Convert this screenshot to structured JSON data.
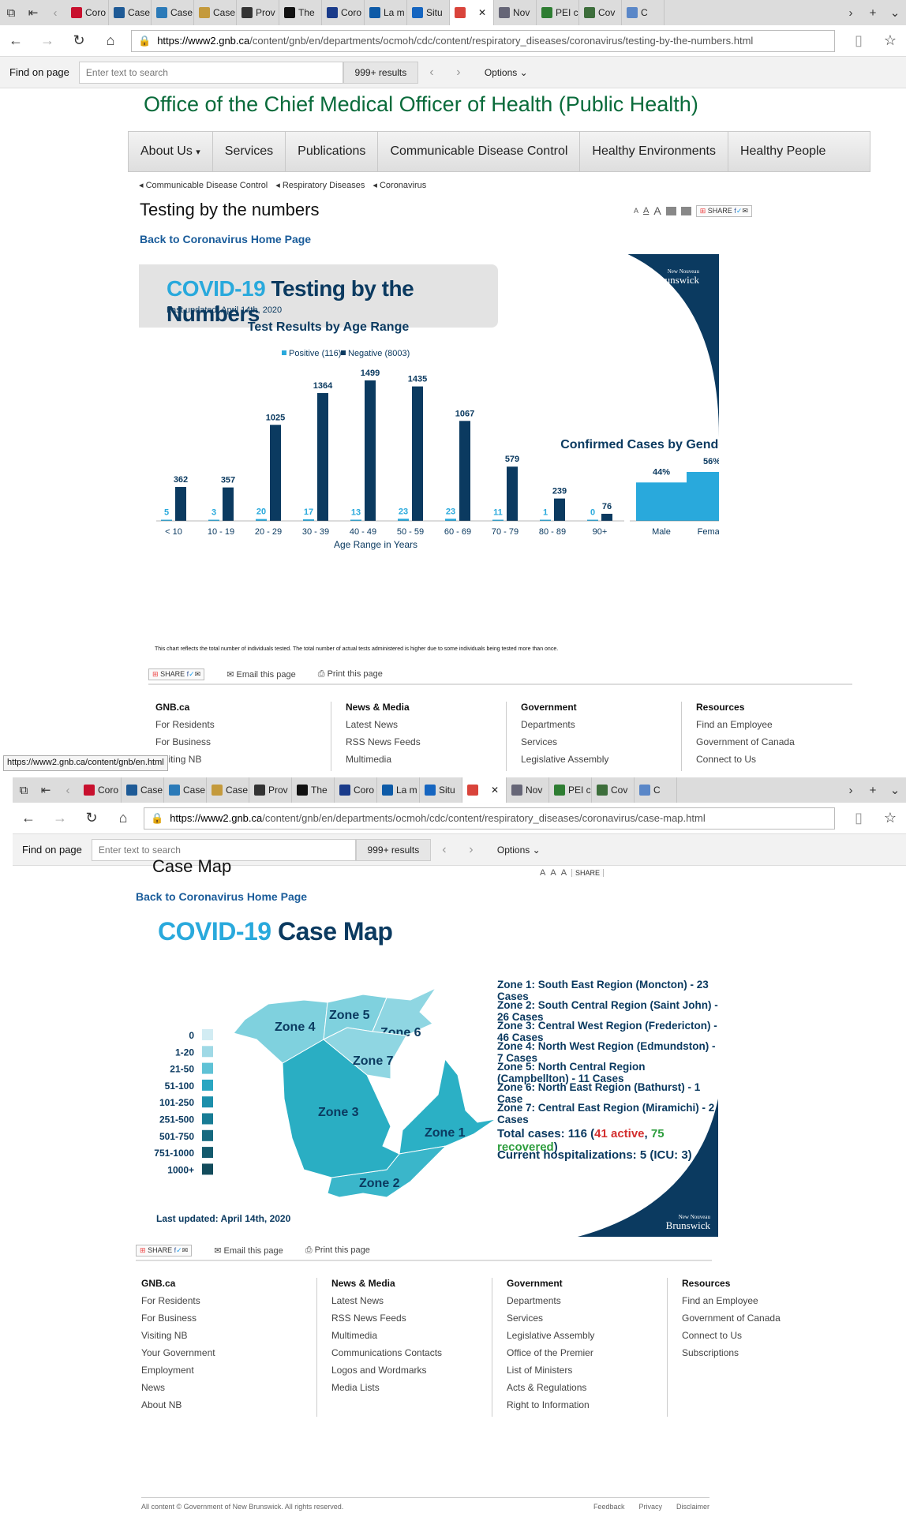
{
  "browser1": {
    "tabs": [
      "Coro",
      "Case",
      "Case",
      "Case",
      "Prov",
      "The",
      "Coro",
      "La m",
      "Situ",
      "",
      "Nov",
      "PEI c",
      "Cov",
      "C"
    ],
    "url_domain": "https://www2.gnb.ca",
    "url_path": "/content/gnb/en/departments/ocmoh/cdc/content/respiratory_diseases/coronavirus/testing-by-the-numbers.html",
    "find_label": "Find on page",
    "find_placeholder": "Enter text to search",
    "find_count": "999+ results",
    "find_options": "Options"
  },
  "page1": {
    "office_title": "Office of the Chief Medical Officer of Health (Public Health)",
    "menu": [
      "About Us",
      "Services",
      "Publications",
      "Communicable Disease Control",
      "Healthy Environments",
      "Healthy People"
    ],
    "menu_caret": "▾",
    "breadcrumbs": [
      "Communicable Disease Control",
      "Respiratory Diseases",
      "Coronavirus"
    ],
    "page_title": "Testing by the numbers",
    "share": "SHARE",
    "back_link": "Back to Coronavirus Home Page",
    "banner_covid": "COVID-19",
    "banner_rest": "Testing by the Numbers",
    "last_updated": "Last updated: April 14th, 2020",
    "logo_small": "New Nouveau",
    "logo_big": "Brunswick",
    "note": "This chart reflects the total number of individuals tested. The total number of actual tests administered is higher due to some individuals being tested more than once.",
    "email_page": "Email this page",
    "print_page": "Print this page"
  },
  "chart_data": [
    {
      "type": "bar",
      "title": "Test Results by Age Range",
      "xlabel": "Age Range in Years",
      "categories": [
        "< 10",
        "10 - 19",
        "20 - 29",
        "30 - 39",
        "40 - 49",
        "50 - 59",
        "60 - 69",
        "70 - 79",
        "80 - 89",
        "90+"
      ],
      "series": [
        {
          "name": "Positive (116)",
          "color": "#29a9dc",
          "values": [
            5,
            3,
            20,
            17,
            13,
            23,
            23,
            11,
            1,
            0
          ]
        },
        {
          "name": "Negative (8003)",
          "color": "#0b3a60",
          "values": [
            362,
            357,
            1025,
            1364,
            1499,
            1435,
            1067,
            579,
            239,
            76
          ]
        }
      ],
      "ylim": [
        0,
        1600
      ],
      "legend": "top-center"
    },
    {
      "type": "bar",
      "title": "Confirmed Cases by Gender Ratio",
      "categories": [
        "Male",
        "Female"
      ],
      "values": [
        44,
        56
      ],
      "value_labels": [
        "44%",
        "56%"
      ],
      "color": "#29a9dc",
      "ylim": [
        0,
        70
      ]
    }
  ],
  "footer1": {
    "cols": [
      {
        "h": "GNB.ca",
        "items": [
          "For Residents",
          "For Business",
          "Visiting NB"
        ]
      },
      {
        "h": "News & Media",
        "items": [
          "Latest News",
          "RSS News Feeds",
          "Multimedia"
        ]
      },
      {
        "h": "Government",
        "items": [
          "Departments",
          "Services",
          "Legislative Assembly"
        ]
      },
      {
        "h": "Resources",
        "items": [
          "Find an Employee",
          "Government of Canada",
          "Connect to Us"
        ]
      }
    ]
  },
  "status_url": "https://www2.gnb.ca/content/gnb/en.html",
  "browser2": {
    "tabs": [
      "Coro",
      "Case",
      "Case",
      "Case",
      "Prov",
      "The",
      "Coro",
      "La m",
      "Situ",
      "",
      "Nov",
      "PEI c",
      "Cov",
      "C"
    ],
    "url_domain": "https://www2.gnb.ca",
    "url_path": "/content/gnb/en/departments/ocmoh/cdc/content/respiratory_diseases/coronavirus/case-map.html",
    "find_label": "Find on page",
    "find_placeholder": "Enter text to search",
    "find_count": "999+ results",
    "find_options": "Options"
  },
  "page2": {
    "cut_title": "Case Map",
    "back_link": "Back to Coronavirus Home Page",
    "banner_covid": "COVID-19",
    "banner_rest": "Case Map",
    "legend": [
      {
        "label": "0",
        "color": "#d2ecf3"
      },
      {
        "label": "1-20",
        "color": "#9fd9e6"
      },
      {
        "label": "21-50",
        "color": "#5fc2d6"
      },
      {
        "label": "51-100",
        "color": "#2aa6c1"
      },
      {
        "label": "101-250",
        "color": "#1c8fab"
      },
      {
        "label": "251-500",
        "color": "#187c95"
      },
      {
        "label": "501-750",
        "color": "#16697f"
      },
      {
        "label": "751-1000",
        "color": "#145a6d"
      },
      {
        "label": "1000+",
        "color": "#134c5c"
      }
    ],
    "zones": [
      {
        "label": "Zone 1",
        "color": "#2bb0c5"
      },
      {
        "label": "Zone 2",
        "color": "#3ab6ca"
      },
      {
        "label": "Zone 3",
        "color": "#2aaec3"
      },
      {
        "label": "Zone 4",
        "color": "#7fd1de"
      },
      {
        "label": "Zone 5",
        "color": "#7fd1de"
      },
      {
        "label": "Zone 6",
        "color": "#8fd6e2"
      },
      {
        "label": "Zone 7",
        "color": "#8fd6e2"
      }
    ],
    "zone_info": [
      "Zone 1: South East Region (Moncton) - 23 Cases",
      "Zone 2: South Central Region (Saint John) - 26 Cases",
      "Zone 3: Central West Region (Fredericton) - 46 Cases",
      "Zone 4: North West Region (Edmundston) - 7 Cases",
      "Zone 5: North Central Region (Campbellton) - 11 Cases",
      "Zone 6: North East Region (Bathurst) - 1 Case",
      "Zone 7: Central East Region (Miramichi) - 2 Cases"
    ],
    "total_prefix": "Total cases: 116 (",
    "total_active": "41 active",
    "total_sep": ", ",
    "total_recovered": "75 recovered",
    "total_suffix": ")",
    "hospital": "Current hospitalizations: 5 (ICU: 3)",
    "last_updated": "Last updated: April 14th, 2020",
    "logo_small": "New Nouveau",
    "logo_big": "Brunswick",
    "share": "SHARE",
    "email_page": "Email this page",
    "print_page": "Print this page",
    "active_color": "#d32f2f",
    "recovered_color": "#2e9e3e"
  },
  "footer2": {
    "cols": [
      {
        "h": "GNB.ca",
        "items": [
          "For Residents",
          "For Business",
          "Visiting NB",
          "Your Government",
          "Employment",
          "News",
          "About NB"
        ]
      },
      {
        "h": "News & Media",
        "items": [
          "Latest News",
          "RSS News Feeds",
          "Multimedia",
          "Communications Contacts",
          "Logos and Wordmarks",
          "Media Lists"
        ]
      },
      {
        "h": "Government",
        "items": [
          "Departments",
          "Services",
          "Legislative Assembly",
          "Office of the Premier",
          "List of Ministers",
          "Acts & Regulations",
          "Right to Information"
        ]
      },
      {
        "h": "Resources",
        "items": [
          "Find an Employee",
          "Government of Canada",
          "Connect to Us",
          "Subscriptions"
        ]
      }
    ],
    "copyright": "All content © Government of New Brunswick. All rights reserved.",
    "bottom_links": [
      "Feedback",
      "Privacy",
      "Disclaimer"
    ]
  }
}
